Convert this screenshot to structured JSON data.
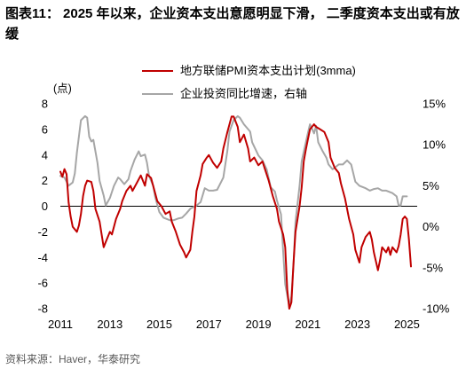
{
  "source": "资料来源：Haver，华泰研究",
  "chart_data": {
    "type": "line",
    "title": "图表11： 2025 年以来，企业资本支出意愿明显下滑， 二季度资本支出或有放缓",
    "ylabel": "(点)",
    "xlim": [
      "2011-01",
      "2025-06"
    ],
    "ylim": [
      -8,
      8
    ],
    "y2lim": [
      -10,
      15
    ],
    "x_ticks": [
      "2011",
      "2013",
      "2015",
      "2017",
      "2019",
      "2021",
      "2023",
      "2025"
    ],
    "y_ticks": [
      "8",
      "6",
      "4",
      "2",
      "0",
      "-2",
      "-4",
      "-6",
      "-8"
    ],
    "y2_ticks": [
      "15%",
      "10%",
      "5%",
      "0%",
      "-5%",
      "-10%"
    ],
    "grid": false,
    "legend_position": "top",
    "series": [
      {
        "name": "地方联储PMI资本支出计划(3mma)",
        "axis": "left",
        "color": "#C00000",
        "data": [
          [
            "2011-01",
            2.7
          ],
          [
            "2011-02",
            2.3
          ],
          [
            "2011-03",
            2.9
          ],
          [
            "2011-04",
            2.5
          ],
          [
            "2011-05",
            0.3
          ],
          [
            "2011-06",
            -0.8
          ],
          [
            "2011-07",
            -1.6
          ],
          [
            "2011-09",
            -2.0
          ],
          [
            "2011-10",
            -1.5
          ],
          [
            "2011-11",
            -0.6
          ],
          [
            "2011-12",
            0.8
          ],
          [
            "2012-01",
            1.6
          ],
          [
            "2012-02",
            2.0
          ],
          [
            "2012-04",
            1.9
          ],
          [
            "2012-05",
            1.2
          ],
          [
            "2012-06",
            -0.2
          ],
          [
            "2012-08",
            -1.2
          ],
          [
            "2012-09",
            -2.2
          ],
          [
            "2012-10",
            -3.2
          ],
          [
            "2012-11",
            -2.8
          ],
          [
            "2013-01",
            -2.0
          ],
          [
            "2013-02",
            -2.2
          ],
          [
            "2013-04",
            -1.0
          ],
          [
            "2013-06",
            -0.2
          ],
          [
            "2013-07",
            0.4
          ],
          [
            "2013-09",
            1.2
          ],
          [
            "2013-11",
            1.6
          ],
          [
            "2013-12",
            1.2
          ],
          [
            "2014-02",
            1.8
          ],
          [
            "2014-04",
            2.4
          ],
          [
            "2014-06",
            1.6
          ],
          [
            "2014-07",
            2.5
          ],
          [
            "2014-09",
            2.2
          ],
          [
            "2014-11",
            1.0
          ],
          [
            "2014-12",
            0.4
          ],
          [
            "2015-02",
            0.0
          ],
          [
            "2015-04",
            -0.6
          ],
          [
            "2015-06",
            -0.4
          ],
          [
            "2015-07",
            -1.2
          ],
          [
            "2015-09",
            -2.0
          ],
          [
            "2015-11",
            -3.0
          ],
          [
            "2016-01",
            -3.6
          ],
          [
            "2016-02",
            -4.0
          ],
          [
            "2016-04",
            -3.4
          ],
          [
            "2016-05",
            -2.0
          ],
          [
            "2016-06",
            -0.8
          ],
          [
            "2016-07",
            1.2
          ],
          [
            "2016-09",
            2.4
          ],
          [
            "2016-10",
            3.3
          ],
          [
            "2016-12",
            3.8
          ],
          [
            "2017-01",
            4.0
          ],
          [
            "2017-03",
            3.4
          ],
          [
            "2017-05",
            3.0
          ],
          [
            "2017-07",
            3.5
          ],
          [
            "2017-08",
            4.5
          ],
          [
            "2017-10",
            5.8
          ],
          [
            "2017-12",
            7.0
          ],
          [
            "2018-01",
            7.0
          ],
          [
            "2018-03",
            6.2
          ],
          [
            "2018-04",
            5.0
          ],
          [
            "2018-06",
            5.6
          ],
          [
            "2018-08",
            4.5
          ],
          [
            "2018-09",
            3.5
          ],
          [
            "2018-11",
            3.8
          ],
          [
            "2019-01",
            3.2
          ],
          [
            "2019-03",
            3.5
          ],
          [
            "2019-04",
            3.0
          ],
          [
            "2019-06",
            2.0
          ],
          [
            "2019-08",
            0.8
          ],
          [
            "2019-10",
            -0.2
          ],
          [
            "2019-11",
            -1.2
          ],
          [
            "2020-01",
            -2.2
          ],
          [
            "2020-02",
            -3.2
          ],
          [
            "2020-03",
            -6.5
          ],
          [
            "2020-04",
            -8.0
          ],
          [
            "2020-05",
            -7.5
          ],
          [
            "2020-06",
            -4.5
          ],
          [
            "2020-07",
            -2.0
          ],
          [
            "2020-09",
            0.0
          ],
          [
            "2020-10",
            1.5
          ],
          [
            "2020-11",
            3.5
          ],
          [
            "2020-12",
            4.4
          ],
          [
            "2021-01",
            5.2
          ],
          [
            "2021-02",
            6.0
          ],
          [
            "2021-04",
            6.4
          ],
          [
            "2021-05",
            6.2
          ],
          [
            "2021-07",
            6.0
          ],
          [
            "2021-09",
            5.8
          ],
          [
            "2021-11",
            5.0
          ],
          [
            "2021-12",
            3.8
          ],
          [
            "2022-02",
            3.0
          ],
          [
            "2022-04",
            2.6
          ],
          [
            "2022-05",
            1.8
          ],
          [
            "2022-07",
            0.6
          ],
          [
            "2022-09",
            -1.0
          ],
          [
            "2022-11",
            -2.2
          ],
          [
            "2022-12",
            -3.4
          ],
          [
            "2023-02",
            -4.4
          ],
          [
            "2023-03",
            -3.2
          ],
          [
            "2023-05",
            -2.4
          ],
          [
            "2023-07",
            -2.0
          ],
          [
            "2023-08",
            -2.6
          ],
          [
            "2023-09",
            -3.6
          ],
          [
            "2023-11",
            -5.0
          ],
          [
            "2023-12",
            -4.2
          ],
          [
            "2024-01",
            -3.2
          ],
          [
            "2024-03",
            -3.6
          ],
          [
            "2024-04",
            -3.2
          ],
          [
            "2024-05",
            -3.8
          ],
          [
            "2024-06",
            -3.2
          ],
          [
            "2024-08",
            -3.6
          ],
          [
            "2024-09",
            -3.1
          ],
          [
            "2024-10",
            -2.2
          ],
          [
            "2024-11",
            -1.0
          ],
          [
            "2024-12",
            -0.8
          ],
          [
            "2025-01",
            -1.0
          ],
          [
            "2025-02",
            -2.6
          ],
          [
            "2025-03",
            -4.7
          ]
        ]
      },
      {
        "name": "企业投资同比增速，右轴",
        "axis": "right",
        "color": "#A6A6A6",
        "data": [
          [
            "2011-01",
            6.2
          ],
          [
            "2011-03",
            6.0
          ],
          [
            "2011-04",
            5.5
          ],
          [
            "2011-05",
            5.0
          ],
          [
            "2011-07",
            5.4
          ],
          [
            "2011-08",
            6.5
          ],
          [
            "2011-09",
            9.0
          ],
          [
            "2011-11",
            13.0
          ],
          [
            "2012-01",
            13.5
          ],
          [
            "2012-02",
            13.3
          ],
          [
            "2012-03",
            11.0
          ],
          [
            "2012-04",
            10.4
          ],
          [
            "2012-05",
            10.6
          ],
          [
            "2012-07",
            7.8
          ],
          [
            "2012-08",
            5.6
          ],
          [
            "2012-10",
            3.8
          ],
          [
            "2012-11",
            2.6
          ],
          [
            "2013-01",
            3.5
          ],
          [
            "2013-03",
            5.0
          ],
          [
            "2013-05",
            6.0
          ],
          [
            "2013-06",
            5.8
          ],
          [
            "2013-08",
            5.2
          ],
          [
            "2013-10",
            5.8
          ],
          [
            "2013-11",
            6.8
          ],
          [
            "2014-01",
            8.2
          ],
          [
            "2014-03",
            9.2
          ],
          [
            "2014-04",
            8.6
          ],
          [
            "2014-06",
            8.8
          ],
          [
            "2014-07",
            7.8
          ],
          [
            "2014-08",
            6.2
          ],
          [
            "2014-10",
            5.0
          ],
          [
            "2014-11",
            3.6
          ],
          [
            "2015-01",
            1.8
          ],
          [
            "2015-03",
            1.1
          ],
          [
            "2015-06",
            0.8
          ],
          [
            "2015-08",
            0.8
          ],
          [
            "2015-10",
            1.0
          ],
          [
            "2015-12",
            1.1
          ],
          [
            "2016-02",
            1.6
          ],
          [
            "2016-04",
            2.2
          ],
          [
            "2016-07",
            2.6
          ],
          [
            "2016-09",
            3.0
          ],
          [
            "2016-11",
            4.7
          ],
          [
            "2017-01",
            4.4
          ],
          [
            "2017-03",
            4.4
          ],
          [
            "2017-05",
            4.5
          ],
          [
            "2017-08",
            6.0
          ],
          [
            "2017-10",
            9.3
          ],
          [
            "2017-11",
            11.6
          ],
          [
            "2018-01",
            13.0
          ],
          [
            "2018-03",
            13.5
          ],
          [
            "2018-04",
            13.3
          ],
          [
            "2018-06",
            12.5
          ],
          [
            "2018-09",
            11.6
          ],
          [
            "2018-10",
            10.3
          ],
          [
            "2019-01",
            8.7
          ],
          [
            "2019-03",
            8.1
          ],
          [
            "2019-05",
            7.0
          ],
          [
            "2019-07",
            4.8
          ],
          [
            "2019-09",
            4.3
          ],
          [
            "2019-10",
            3.2
          ],
          [
            "2019-12",
            1.5
          ],
          [
            "2020-01",
            -3.0
          ],
          [
            "2020-02",
            -7.0
          ],
          [
            "2020-04",
            -9.7
          ],
          [
            "2020-05",
            -8.5
          ],
          [
            "2020-06",
            -4.8
          ],
          [
            "2020-07",
            0.6
          ],
          [
            "2020-09",
            5.0
          ],
          [
            "2020-10",
            8.0
          ],
          [
            "2021-01",
            11.4
          ],
          [
            "2021-02",
            12.5
          ],
          [
            "2021-04",
            11.4
          ],
          [
            "2021-05",
            12.3
          ],
          [
            "2021-06",
            10.3
          ],
          [
            "2021-08",
            9.3
          ],
          [
            "2021-10",
            8.4
          ],
          [
            "2021-11",
            7.6
          ],
          [
            "2022-01",
            7.0
          ],
          [
            "2022-04",
            7.6
          ],
          [
            "2022-06",
            7.6
          ],
          [
            "2022-08",
            8.1
          ],
          [
            "2022-10",
            7.6
          ],
          [
            "2022-12",
            5.5
          ],
          [
            "2023-02",
            5.0
          ],
          [
            "2023-05",
            4.7
          ],
          [
            "2023-07",
            4.4
          ],
          [
            "2023-09",
            4.6
          ],
          [
            "2023-11",
            4.7
          ],
          [
            "2024-01",
            4.4
          ],
          [
            "2024-03",
            4.4
          ],
          [
            "2024-06",
            4.1
          ],
          [
            "2024-08",
            3.7
          ],
          [
            "2024-09",
            2.6
          ],
          [
            "2024-10",
            2.6
          ],
          [
            "2024-11",
            3.7
          ],
          [
            "2025-01",
            3.7
          ]
        ]
      }
    ]
  }
}
